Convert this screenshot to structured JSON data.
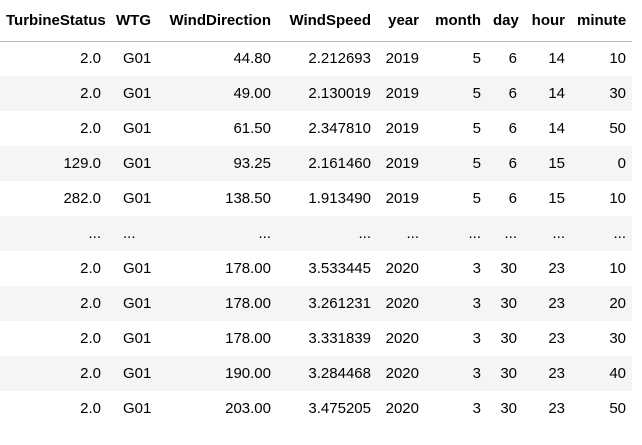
{
  "table": {
    "columns": [
      "TurbineStatus",
      "WTG",
      "WindDirection",
      "WindSpeed",
      "year",
      "month",
      "day",
      "hour",
      "minute"
    ],
    "rows": [
      [
        "2.0",
        "G01",
        "44.80",
        "2.212693",
        "2019",
        "5",
        "6",
        "14",
        "10"
      ],
      [
        "2.0",
        "G01",
        "49.00",
        "2.130019",
        "2019",
        "5",
        "6",
        "14",
        "30"
      ],
      [
        "2.0",
        "G01",
        "61.50",
        "2.347810",
        "2019",
        "5",
        "6",
        "14",
        "50"
      ],
      [
        "129.0",
        "G01",
        "93.25",
        "2.161460",
        "2019",
        "5",
        "6",
        "15",
        "0"
      ],
      [
        "282.0",
        "G01",
        "138.50",
        "1.913490",
        "2019",
        "5",
        "6",
        "15",
        "10"
      ],
      [
        "...",
        "...",
        "...",
        "...",
        "...",
        "...",
        "...",
        "...",
        "..."
      ],
      [
        "2.0",
        "G01",
        "178.00",
        "3.533445",
        "2020",
        "3",
        "30",
        "23",
        "10"
      ],
      [
        "2.0",
        "G01",
        "178.00",
        "3.261231",
        "2020",
        "3",
        "30",
        "23",
        "20"
      ],
      [
        "2.0",
        "G01",
        "178.00",
        "3.331839",
        "2020",
        "3",
        "30",
        "23",
        "30"
      ],
      [
        "2.0",
        "G01",
        "190.00",
        "3.284468",
        "2020",
        "3",
        "30",
        "23",
        "40"
      ],
      [
        "2.0",
        "G01",
        "203.00",
        "3.475205",
        "2020",
        "3",
        "30",
        "23",
        "50"
      ]
    ]
  }
}
